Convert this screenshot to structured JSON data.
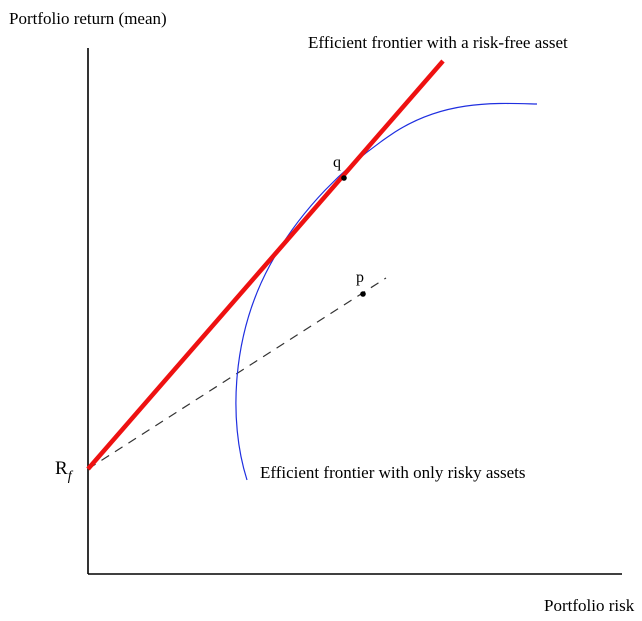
{
  "diagram": {
    "y_axis_label": "Portfolio return (mean)",
    "x_axis_label": "Portfolio risk",
    "capital_line_label": "Efficient frontier with a risk-free asset",
    "risky_frontier_label": "Efficient frontier with only risky assets",
    "risk_free_label": "R",
    "risk_free_subscript": "f",
    "tangency_point_label": "q",
    "portfolio_point_label": "p",
    "colors": {
      "capital_line": "#ee1111",
      "risky_frontier": "#1f2fe0",
      "axes": "#000000",
      "dashed_line": "#333333"
    }
  }
}
